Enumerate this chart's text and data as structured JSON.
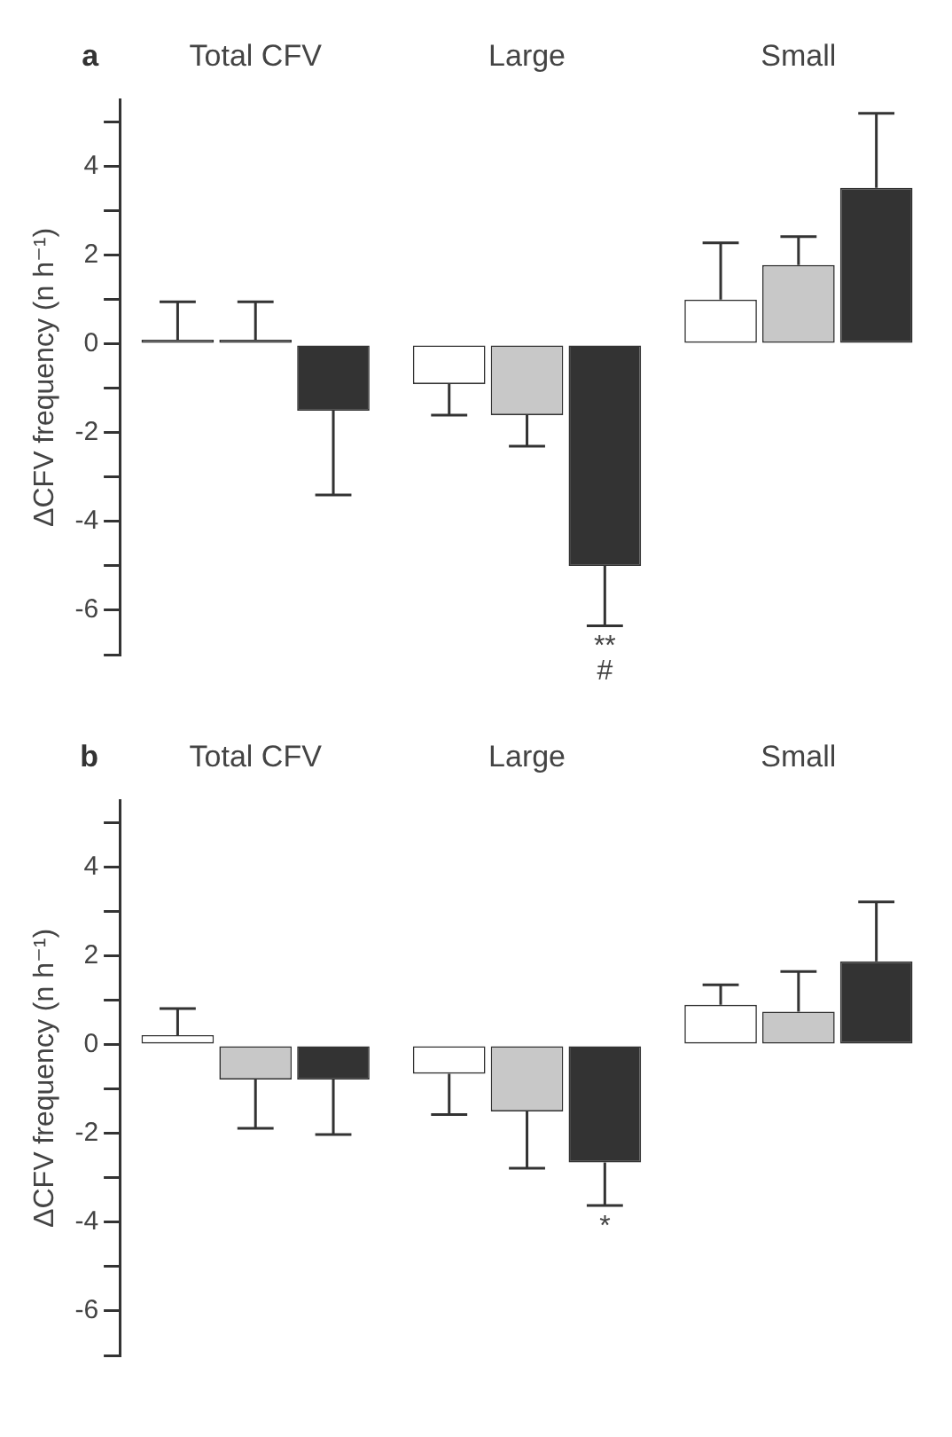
{
  "chart_data": [
    {
      "type": "bar",
      "title": "a",
      "ylabel": "ΔCFV frequency (n h⁻¹)",
      "categories": [
        "Total CFV",
        "Large",
        "Small"
      ],
      "ylim": [
        -7,
        5.5
      ],
      "yticks": [
        {
          "value": -7,
          "label": null
        },
        -6,
        {
          "value": -5,
          "label": null
        },
        -4,
        {
          "value": -3,
          "label": null
        },
        -2,
        {
          "value": -1,
          "label": null
        },
        0,
        {
          "value": 1,
          "label": null
        },
        2,
        {
          "value": 3,
          "label": null
        },
        4,
        {
          "value": 5,
          "label": null
        }
      ],
      "grid": false,
      "legend": false,
      "series": [
        {
          "color": "#ffffff",
          "values": [
            0.1,
            -0.9,
            1.0
          ],
          "errors": [
            [
              0.1,
              0.95
            ],
            [
              -1.6,
              -0.9
            ],
            [
              1.0,
              2.28
            ]
          ]
        },
        {
          "color": "#c8c8c8",
          "values": [
            0.1,
            -1.6,
            1.78
          ],
          "errors": [
            [
              0.1,
              0.95
            ],
            [
              -2.3,
              -1.6
            ],
            [
              1.78,
              2.42
            ]
          ]
        },
        {
          "color": "#333333",
          "values": [
            -1.5,
            -5.0,
            3.52
          ],
          "errors": [
            [
              -3.4,
              -1.5
            ],
            [
              -6.35,
              -5.0
            ],
            [
              3.52,
              5.2
            ]
          ]
        }
      ],
      "annotations": [
        "**",
        "#"
      ]
    },
    {
      "type": "bar",
      "title": "b",
      "ylabel": "ΔCFV frequency (n h⁻¹)",
      "categories": [
        "Total CFV",
        "Large",
        "Small"
      ],
      "ylim": [
        -7,
        5.5
      ],
      "yticks": [
        {
          "value": -7,
          "label": null
        },
        -6,
        {
          "value": -5,
          "label": null
        },
        -4,
        {
          "value": -3,
          "label": null
        },
        -2,
        {
          "value": -1,
          "label": null
        },
        0,
        {
          "value": 1,
          "label": null
        },
        2,
        {
          "value": 3,
          "label": null
        },
        4,
        {
          "value": 5,
          "label": null
        }
      ],
      "grid": false,
      "legend": false,
      "series": [
        {
          "color": "#ffffff",
          "values": [
            0.22,
            -0.65,
            0.9
          ],
          "errors": [
            [
              0.22,
              0.82
            ],
            [
              -1.57,
              -0.65
            ],
            [
              0.9,
              1.35
            ]
          ]
        },
        {
          "color": "#c8c8c8",
          "values": [
            -0.78,
            -1.5,
            0.75
          ],
          "errors": [
            [
              -1.88,
              -0.78
            ],
            [
              -2.78,
              -1.5
            ],
            [
              0.75,
              1.65
            ]
          ]
        },
        {
          "color": "#333333",
          "values": [
            -0.78,
            -2.65,
            1.88
          ],
          "errors": [
            [
              -2.02,
              -0.78
            ],
            [
              -3.62,
              -2.65
            ],
            [
              1.88,
              3.22
            ]
          ]
        }
      ],
      "annotations": [
        "*"
      ]
    }
  ]
}
